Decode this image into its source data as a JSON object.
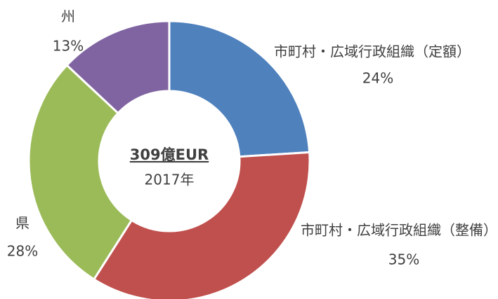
{
  "chart_data": {
    "type": "donut",
    "categories": [
      "市町村・広域行政組織（定額）",
      "市町村・広域行政組織（整備）",
      "県",
      "州"
    ],
    "values": [
      24,
      35,
      28,
      13
    ],
    "value_labels": [
      "24%",
      "35%",
      "28%",
      "13%"
    ],
    "colors": [
      "#4f81bd",
      "#c0504d",
      "#9bbb59",
      "#8064a2"
    ],
    "center_title": "309億EUR",
    "center_subtitle": "2017年"
  }
}
